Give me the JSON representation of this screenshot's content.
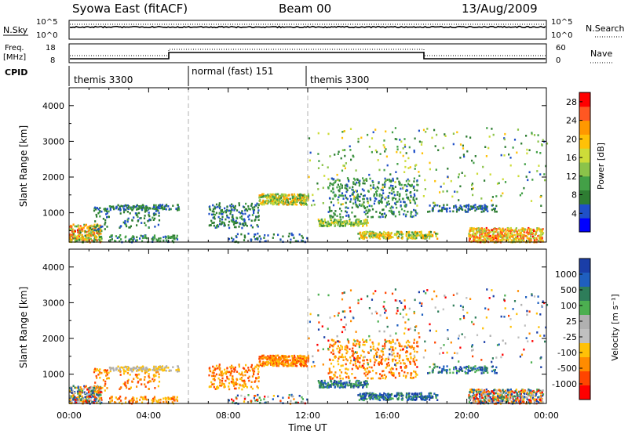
{
  "header": {
    "station": "Syowa East (fitACF)",
    "beam": "Beam 00",
    "date": "13/Aug/2009"
  },
  "panels": {
    "nsky_label": "N.Sky",
    "nsearch_label": "N.Search",
    "freq_label_1": "Freq.",
    "freq_label_2": "[MHz]",
    "nave_label": "Nave",
    "cpid_label": "CPID",
    "nsky_ticks": [
      "10^5",
      "10^0"
    ],
    "nsearch_ticks": [
      "10^5",
      "10^0"
    ],
    "freq_ticks": [
      "18",
      "8"
    ],
    "nave_ticks": [
      "60",
      "0"
    ],
    "cpid_segments": [
      {
        "label": "themis 3300",
        "start_h": 0,
        "end_h": 6
      },
      {
        "label": "normal (fast) 151",
        "start_h": 6,
        "end_h": 12
      },
      {
        "label": "themis 3300",
        "start_h": 12,
        "end_h": 24
      }
    ]
  },
  "colors": {
    "power_scale": [
      "#0000ff",
      "#1f4fc8",
      "#2e7d32",
      "#43a047",
      "#8bc34a",
      "#cddc39",
      "#ffc107",
      "#ff9800",
      "#ff5722",
      "#ff0000"
    ],
    "velocity_scale": [
      "#1a3ea8",
      "#1f5fbf",
      "#2e7d5a",
      "#4caf50",
      "#b0b0b0",
      "#c0c0c0",
      "#ffc107",
      "#ff8c00",
      "#ff4500",
      "#ff0000"
    ],
    "dashed_line": "#b0b0b0"
  },
  "chart_data": {
    "type": "heatmap",
    "x": {
      "label": "Time UT",
      "range_h": [
        0,
        24
      ],
      "ticks": [
        "00:00",
        "04:00",
        "08:00",
        "12:00",
        "16:00",
        "20:00",
        "00:00"
      ]
    },
    "y": {
      "label": "Slant Range [km]",
      "range": [
        180,
        4500
      ],
      "ticks": [
        "1000",
        "2000",
        "3000",
        "4000"
      ]
    },
    "power_colorbar": {
      "label": "Power [dB]",
      "ticks": [
        "4",
        "8",
        "12",
        "16",
        "20",
        "24",
        "28"
      ],
      "range": [
        0,
        30
      ]
    },
    "velocity_colorbar": {
      "label": "Velocity [m s⁻¹]",
      "ticks": [
        "1000",
        "500",
        "100",
        "25",
        "-25",
        "-100",
        "-500",
        "-1000"
      ]
    },
    "scatter_regions": [
      {
        "t0": 0.0,
        "t1": 1.6,
        "r0": 200,
        "r1": 700,
        "density": 0.55,
        "p": [
          8,
          28
        ],
        "v": "mixed"
      },
      {
        "t0": 1.2,
        "t1": 2.0,
        "r0": 500,
        "r1": 1200,
        "density": 0.15,
        "p": [
          4,
          10
        ],
        "v": "neg"
      },
      {
        "t0": 2.0,
        "t1": 5.5,
        "r0": 1100,
        "r1": 1250,
        "density": 0.45,
        "p": [
          4,
          10
        ],
        "v": "grey"
      },
      {
        "t0": 2.0,
        "t1": 5.5,
        "r0": 200,
        "r1": 400,
        "density": 0.25,
        "p": [
          4,
          12
        ],
        "v": "neg"
      },
      {
        "t0": 2.5,
        "t1": 4.5,
        "r0": 600,
        "r1": 1100,
        "density": 0.12,
        "p": [
          4,
          10
        ],
        "v": "neg"
      },
      {
        "t0": 7.0,
        "t1": 9.5,
        "r0": 600,
        "r1": 1300,
        "density": 0.2,
        "p": [
          4,
          10
        ],
        "v": "neg"
      },
      {
        "t0": 9.5,
        "t1": 12.0,
        "r0": 1250,
        "r1": 1550,
        "density": 0.75,
        "p": [
          8,
          24
        ],
        "v": "neg"
      },
      {
        "t0": 8.0,
        "t1": 12.0,
        "r0": 200,
        "r1": 450,
        "density": 0.12,
        "p": [
          4,
          8
        ],
        "v": "mixed"
      },
      {
        "t0": 12.5,
        "t1": 15.0,
        "r0": 650,
        "r1": 850,
        "density": 0.55,
        "p": [
          8,
          20
        ],
        "v": "pos"
      },
      {
        "t0": 14.5,
        "t1": 18.5,
        "r0": 300,
        "r1": 500,
        "density": 0.55,
        "p": [
          8,
          24
        ],
        "v": "pos"
      },
      {
        "t0": 13.0,
        "t1": 17.5,
        "r0": 900,
        "r1": 2000,
        "density": 0.14,
        "p": [
          4,
          12
        ],
        "v": "neg"
      },
      {
        "t0": 18.0,
        "t1": 21.5,
        "r0": 1050,
        "r1": 1250,
        "density": 0.28,
        "p": [
          4,
          8
        ],
        "v": "pos"
      },
      {
        "t0": 20.0,
        "t1": 23.8,
        "r0": 200,
        "r1": 600,
        "density": 0.6,
        "p": [
          12,
          28
        ],
        "v": "mixed"
      },
      {
        "t0": 12.0,
        "t1": 24.0,
        "r0": 1200,
        "r1": 3400,
        "density": 0.02,
        "p": [
          4,
          20
        ],
        "v": "mixed"
      }
    ]
  }
}
